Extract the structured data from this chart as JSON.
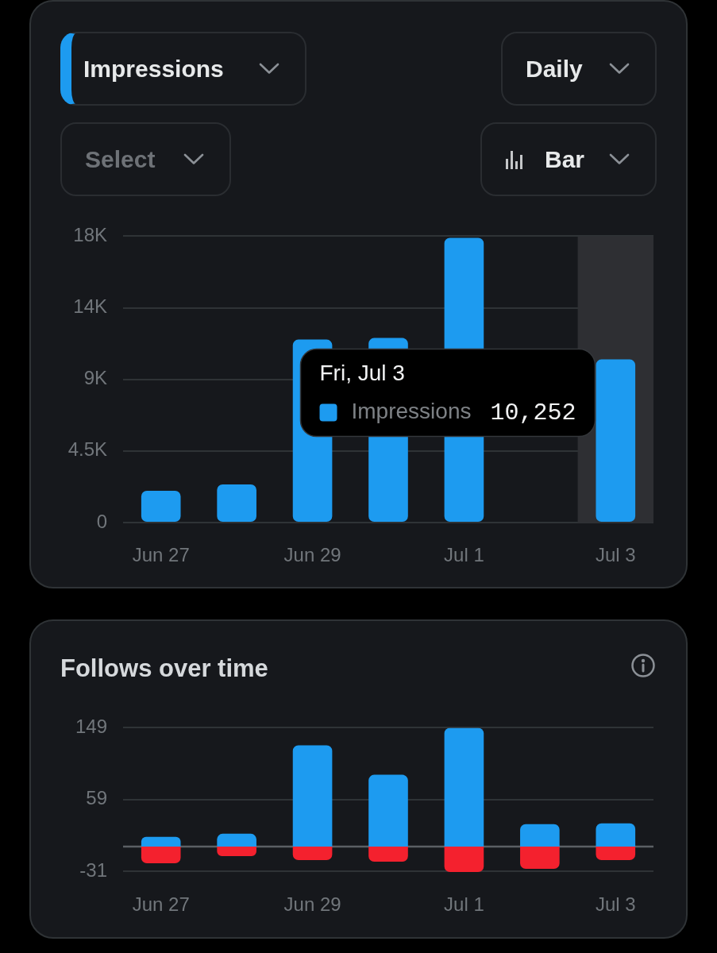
{
  "chart_data": [
    {
      "type": "bar",
      "title": "Impressions",
      "categories": [
        "Jun 27",
        null,
        "Jun 29",
        null,
        "Jul 1",
        null,
        "Jul 3"
      ],
      "series": [
        {
          "name": "Impressions",
          "color": "#1d9bf0",
          "values": [
            2000,
            2400,
            11500,
            11600,
            17900,
            null,
            10252
          ]
        }
      ],
      "ylim": [
        0,
        18000
      ],
      "yticks": [
        0,
        {
          "value": 4500,
          "label": "4.5K"
        },
        {
          "value": 9000,
          "label": "9K"
        },
        {
          "value": 13500,
          "label": "14K"
        },
        {
          "value": 18000,
          "label": "18K"
        }
      ],
      "grid": "y",
      "bands": [
        {
          "axis": "x",
          "from": "Jul 3",
          "to": "Jul 3",
          "color": "#2e2f33"
        }
      ],
      "annotations": [
        "Fri, Jul 3",
        "10,252",
        "Daily",
        "Select",
        "Bar"
      ]
    },
    {
      "type": "bar",
      "title": "Follows over time",
      "categories": [
        "Jun 27",
        null,
        "Jun 29",
        null,
        "Jul 1",
        null,
        "Jul 3"
      ],
      "stacked": true,
      "series": [
        {
          "color": "#1d9bf0",
          "values": [
            12,
            16,
            127,
            90,
            149,
            28,
            29
          ]
        },
        {
          "color": "#f4212e",
          "values": [
            -21,
            -12,
            -17,
            -19,
            -32,
            -28,
            -17
          ]
        }
      ],
      "ylim": [
        -32,
        149
      ],
      "yticks": [
        -31,
        59,
        149
      ],
      "grid": "y",
      "ref_lines": [
        {
          "axis": "y",
          "value": 0,
          "color": "#5b5f64"
        }
      ]
    }
  ]
}
